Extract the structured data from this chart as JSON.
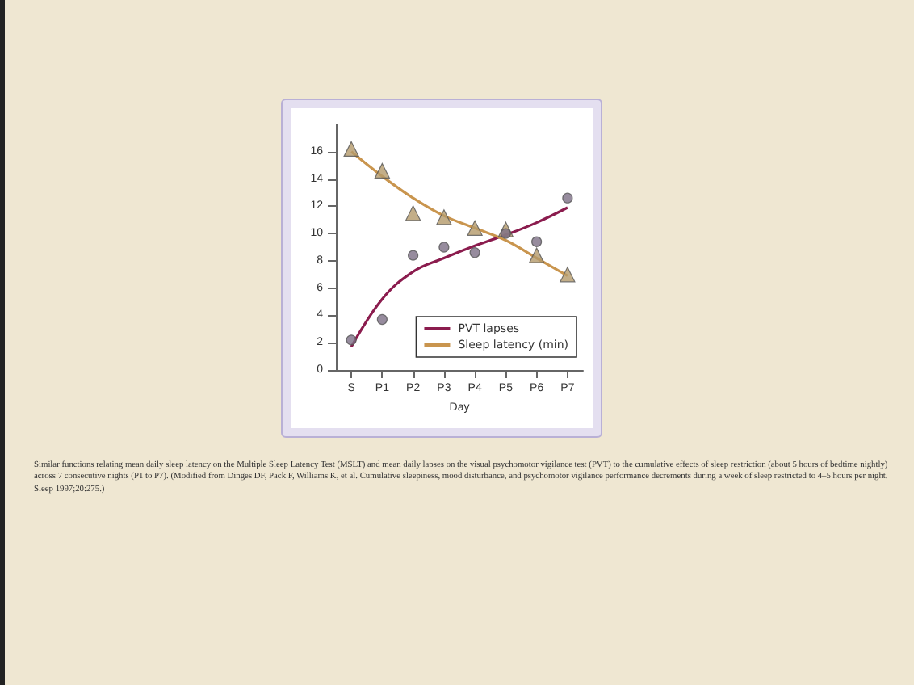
{
  "chart_data": {
    "type": "line",
    "xlabel": "Day",
    "categories": [
      "S",
      "P1",
      "P2",
      "P3",
      "P4",
      "P5",
      "P6",
      "P7"
    ],
    "series": [
      {
        "name": "PVT lapses",
        "color": "#8b1c4e",
        "marker": "none",
        "values": [
          1.7,
          5.2,
          7.2,
          8.2,
          9.1,
          9.9,
          10.8,
          11.9
        ]
      },
      {
        "name": "Sleep latency (min)",
        "color": "#c9954e",
        "marker": "none",
        "values": [
          16.0,
          14.2,
          12.6,
          11.3,
          10.4,
          9.5,
          8.2,
          6.9
        ]
      },
      {
        "type": "scatter",
        "color": "#b49a6a",
        "marker": "triangle",
        "values": [
          16.2,
          14.6,
          11.5,
          11.2,
          10.4,
          10.3,
          8.4,
          7.0
        ]
      },
      {
        "type": "scatter",
        "color": "#7d6f86",
        "marker": "circle",
        "values": [
          2.2,
          3.7,
          8.4,
          9.0,
          8.6,
          10.0,
          9.4,
          12.6
        ]
      }
    ],
    "ylim": [
      0,
      18
    ],
    "yticks": [
      0,
      2,
      4,
      6,
      8,
      10,
      12,
      14,
      16
    ],
    "grid": false,
    "legend": "bottom right",
    "annotations": [
      "Similar functions relating mean daily sleep latency on the Multiple Sleep Latency Test (MSLT) and mean daily lapses on the visual psychomotor vigilance test (PVT) to the cumulative effects of sleep restriction (about 5 hours of bedtime nightly) across 7 consecutive nights (P1 to P7). (Modified from Dinges DF, Pack F, Williams K, et al. Cumulative sleepiness, mood disturbance, and psychomotor vigilance performance decrements during a week of sleep restricted to 4–5 hours per night. Sleep 1997;20:275.)"
    ]
  }
}
